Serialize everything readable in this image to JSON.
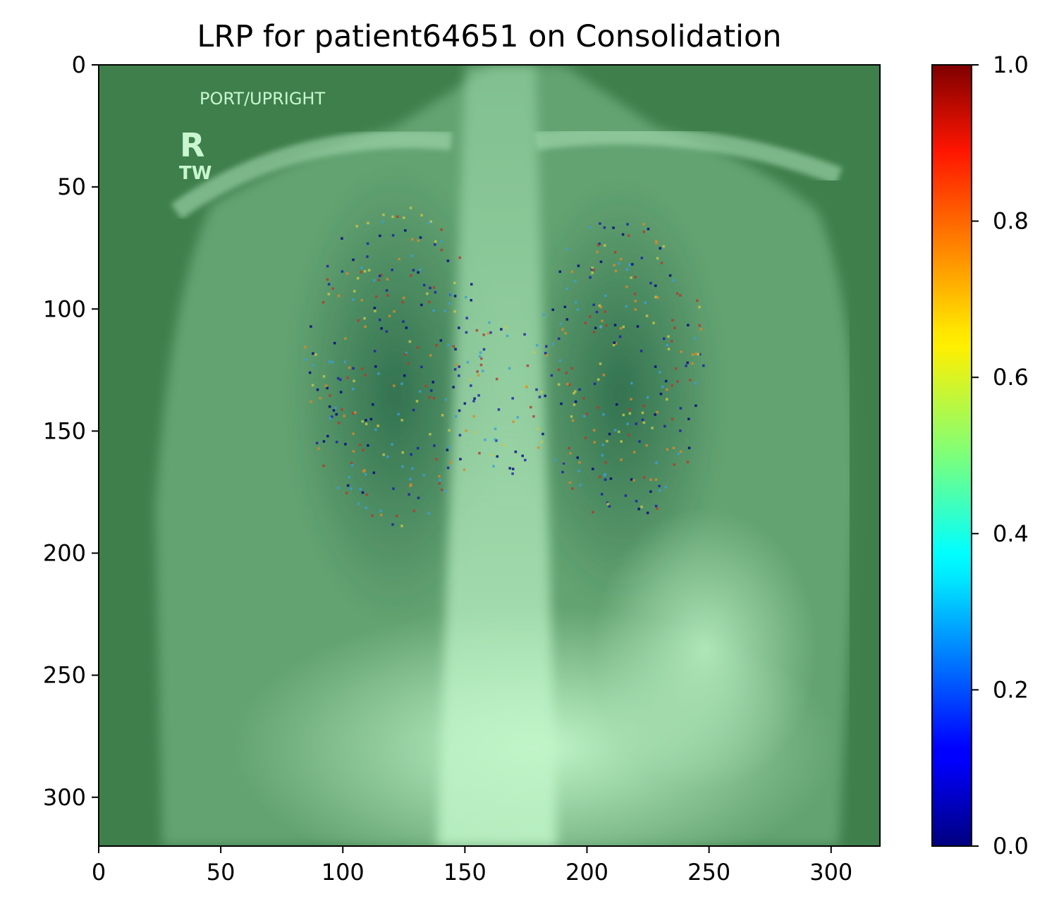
{
  "chart_data": {
    "type": "heatmap",
    "title": "LRP for patient64651 on Consolidation",
    "xlabel": "",
    "ylabel": "",
    "xlim": [
      0,
      320
    ],
    "ylim": [
      320,
      0
    ],
    "x_ticks": [
      0,
      50,
      100,
      150,
      200,
      250,
      300
    ],
    "y_ticks": [
      0,
      50,
      100,
      150,
      200,
      250,
      300
    ],
    "image_annotations": [
      "PORT/UPRIGHT",
      "R",
      "TW"
    ],
    "colorbar": {
      "colormap": "jet",
      "range": [
        0.0,
        1.0
      ],
      "ticks": [
        "0.0",
        "0.2",
        "0.4",
        "0.6",
        "0.8",
        "1.0"
      ]
    },
    "overlay_color": "#3f7f4c",
    "highlight_color": "#c0f5c8"
  }
}
